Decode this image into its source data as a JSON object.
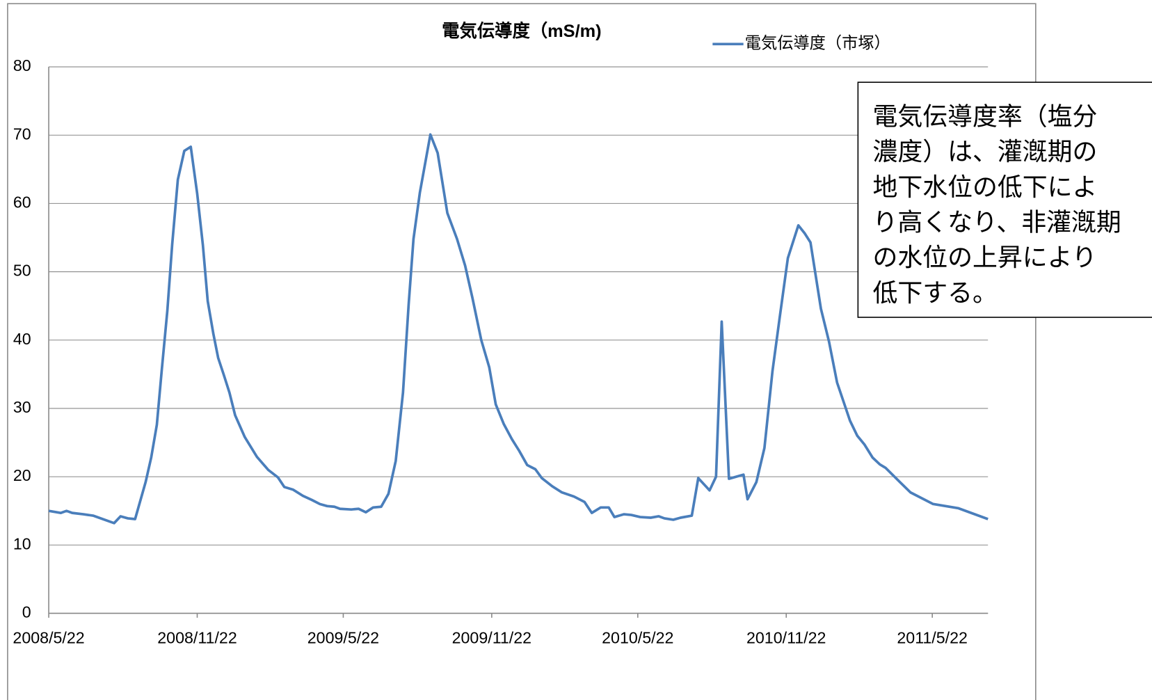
{
  "chart_data": {
    "type": "line",
    "title": "電気伝導度（mS/m)",
    "series": [
      {
        "name": "電気伝導度（市塚）",
        "color": "#4a7ebb",
        "values": [
          15.0,
          14.7,
          15.0,
          14.7,
          14.5,
          14.3,
          13.8,
          13.2,
          14.2,
          13.9,
          13.8,
          19.2,
          22.8,
          27.6,
          35.5,
          44.3,
          54.0,
          63.5,
          67.7,
          68.3,
          61.4,
          53.9,
          45.7,
          40.9,
          37.4,
          34.9,
          32.3,
          29.0,
          25.8,
          22.9,
          21.0,
          19.9,
          18.5,
          18.1,
          17.2,
          16.6,
          16.0,
          15.7,
          15.6,
          15.3,
          15.2,
          15.3,
          14.8,
          15.5,
          15.6,
          17.5,
          22.3,
          32.3,
          45.2,
          54.8,
          61.6,
          70.1,
          67.4,
          58.6,
          54.8,
          50.9,
          46.2,
          40.0,
          36.0,
          30.6,
          27.7,
          25.5,
          23.8,
          21.7,
          21.1,
          19.8,
          18.6,
          17.7,
          17.1,
          16.3,
          14.7,
          15.5,
          15.5,
          14.1,
          14.5,
          14.4,
          14.1,
          14.0,
          14.2,
          13.9,
          13.7,
          14.0,
          14.3,
          19.8,
          18.0,
          20.0,
          42.7,
          19.7,
          20.3,
          16.7,
          19.2,
          24.2,
          35.5,
          43.4,
          52.0,
          56.8,
          55.6,
          54.3,
          44.6,
          39.8,
          33.8,
          28.2,
          26.0,
          24.7,
          22.8,
          21.8,
          21.3,
          19.2,
          17.7,
          16.0,
          15.4,
          13.8
        ]
      }
    ],
    "x": [
      "2008/5/22",
      "2008/6/6",
      "2008/6/13",
      "2008/6/20",
      "2008/7/4",
      "2008/7/16",
      "2008/7/28",
      "2008/8/11",
      "2008/8/19",
      "2008/8/28",
      "2008/9/6",
      "2008/9/19",
      "2008/9/26",
      "2008/10/3",
      "2008/10/9",
      "2008/10/16",
      "2008/10/22",
      "2008/10/29",
      "2008/11/6",
      "2008/11/14",
      "2008/11/22",
      "2008/11/29",
      "2008/12/5",
      "2008/12/12",
      "2008/12/18",
      "2008/12/25",
      "2009/1/1",
      "2009/1/8",
      "2009/1/20",
      "2009/2/4",
      "2009/2/18",
      "2009/3/2",
      "2009/3/10",
      "2009/3/21",
      "2009/4/2",
      "2009/4/13",
      "2009/4/23",
      "2009/5/2",
      "2009/5/11",
      "2009/5/18",
      "2009/6/1",
      "2009/6/10",
      "2009/6/19",
      "2009/6/28",
      "2009/7/8",
      "2009/7/17",
      "2009/7/26",
      "2009/8/4",
      "2009/8/11",
      "2009/8/17",
      "2009/8/25",
      "2009/9/7",
      "2009/9/16",
      "2009/9/28",
      "2009/10/10",
      "2009/10/20",
      "2009/10/29",
      "2009/11/9",
      "2009/11/19",
      "2009/11/27",
      "2009/12/7",
      "2009/12/17",
      "2009/12/26",
      "2010/1/5",
      "2010/1/15",
      "2010/1/23",
      "2010/2/5",
      "2010/2/17",
      "2010/3/4",
      "2010/3/17",
      "2010/3/26",
      "2010/4/6",
      "2010/4/16",
      "2010/4/23",
      "2010/5/5",
      "2010/5/14",
      "2010/5/25",
      "2010/6/7",
      "2010/6/17",
      "2010/6/24",
      "2010/7/5",
      "2010/7/14",
      "2010/7/28",
      "2010/8/5",
      "2010/8/19",
      "2010/8/27",
      "2010/9/3",
      "2010/9/12",
      "2010/9/30",
      "2010/10/5",
      "2010/10/16",
      "2010/10/26",
      "2010/11/5",
      "2010/11/14",
      "2010/11/24",
      "2010/12/7",
      "2010/12/15",
      "2010/12/22",
      "2011/1/4",
      "2011/1/14",
      "2011/1/24",
      "2011/2/9",
      "2011/2/18",
      "2011/2/27",
      "2011/3/9",
      "2011/3/18",
      "2011/3/25",
      "2011/4/12",
      "2011/4/25",
      "2011/5/23",
      "2011/6/23",
      "2011/7/30"
    ],
    "xlim": [
      "2008/5/22",
      "2011/7/30"
    ],
    "xticks": [
      "2008/5/22",
      "2008/11/22",
      "2009/5/22",
      "2009/11/22",
      "2010/5/22",
      "2010/11/22",
      "2011/5/22"
    ],
    "ylim": [
      0,
      80
    ],
    "yticks": [
      0,
      10,
      20,
      30,
      40,
      50,
      60,
      70,
      80
    ],
    "grid": true,
    "legend": "top-right",
    "annotation": [
      "電気伝導度率（塩分",
      "濃度）は、灌漑期の",
      "地下水位の低下によ",
      "り高くなり、非灌漑期",
      "の水位の上昇により",
      "低下する。"
    ]
  }
}
